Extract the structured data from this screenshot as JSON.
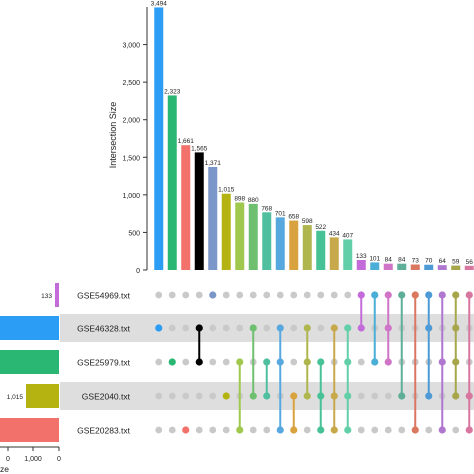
{
  "chart_data": {
    "type": "bar",
    "ylabel": "Intersection Size",
    "ylim": [
      0,
      3500
    ],
    "yticks": [
      0,
      500,
      1000,
      1500,
      2000,
      2500,
      3000
    ],
    "ytick_labels": [
      "0",
      "500",
      "1,000",
      "1,500",
      "2,000",
      "2,500",
      "3,000"
    ],
    "values": [
      3494,
      2323,
      1661,
      1565,
      1371,
      1015,
      898,
      880,
      768,
      701,
      658,
      598,
      522,
      434,
      407,
      133,
      101,
      84,
      84,
      73,
      70,
      64,
      59,
      56,
      53,
      53
    ],
    "value_labels": [
      "3,494",
      "2,323",
      "1,661",
      "1,565",
      "1,371",
      "1,015",
      "898",
      "880",
      "768",
      "701",
      "658",
      "598",
      "522",
      "434",
      "407",
      "133",
      "101",
      "84",
      "84",
      "73",
      "70",
      "64",
      "59",
      "56",
      "53",
      "53"
    ],
    "bar_colors": [
      "#2b9df4",
      "#2ab673",
      "#f2716a",
      "#000000",
      "#7b96c8",
      "#b5b312",
      "#a0c84f",
      "#6fbf70",
      "#4fbfa0",
      "#58a8e0",
      "#d8a23f",
      "#b0b64e",
      "#46c296",
      "#c7a84a",
      "#62cfa8",
      "#c36bd8",
      "#4aaed6",
      "#cf74c6",
      "#5eae98",
      "#d9775f",
      "#4d9ad6",
      "#b077d0",
      "#a7a64a",
      "#d7779f",
      "#6098d0",
      "#c57fcf"
    ],
    "sets": [
      "GSE54969.txt",
      "GSE46328.txt",
      "GSE25979.txt",
      "GSE2040.txt",
      "GSE20283.txt"
    ],
    "set_colors": [
      "#c36bd8",
      "#2b9df4",
      "#2ab673",
      "#b5b312",
      "#f2716a"
    ],
    "set_size_labels": [
      "133",
      "",
      "",
      "1,015",
      "1"
    ],
    "set_size_ticks": [
      "0",
      "1,000",
      "0"
    ],
    "set_size_label_partial": "ze",
    "matrix": [
      [
        1
      ],
      [
        2
      ],
      [
        4
      ],
      [
        1,
        2
      ],
      [
        0
      ],
      [
        3
      ],
      [
        2,
        4
      ],
      [
        1,
        3
      ],
      [
        2,
        3
      ],
      [
        1,
        2,
        4
      ],
      [
        3,
        4
      ],
      [
        1,
        2,
        3
      ],
      [
        2,
        3,
        4
      ],
      [
        1,
        3,
        4
      ],
      [
        1,
        2,
        3,
        4
      ],
      [
        0,
        1
      ],
      [
        0,
        2
      ],
      [
        0,
        1,
        2
      ],
      [
        0,
        3
      ],
      [
        0,
        4
      ],
      [
        0,
        1,
        3
      ],
      [
        0,
        2,
        4
      ],
      [
        0,
        1,
        2,
        3
      ],
      [
        0,
        3,
        4
      ],
      [
        0,
        1,
        4
      ],
      [
        0,
        1,
        2,
        4
      ]
    ]
  }
}
